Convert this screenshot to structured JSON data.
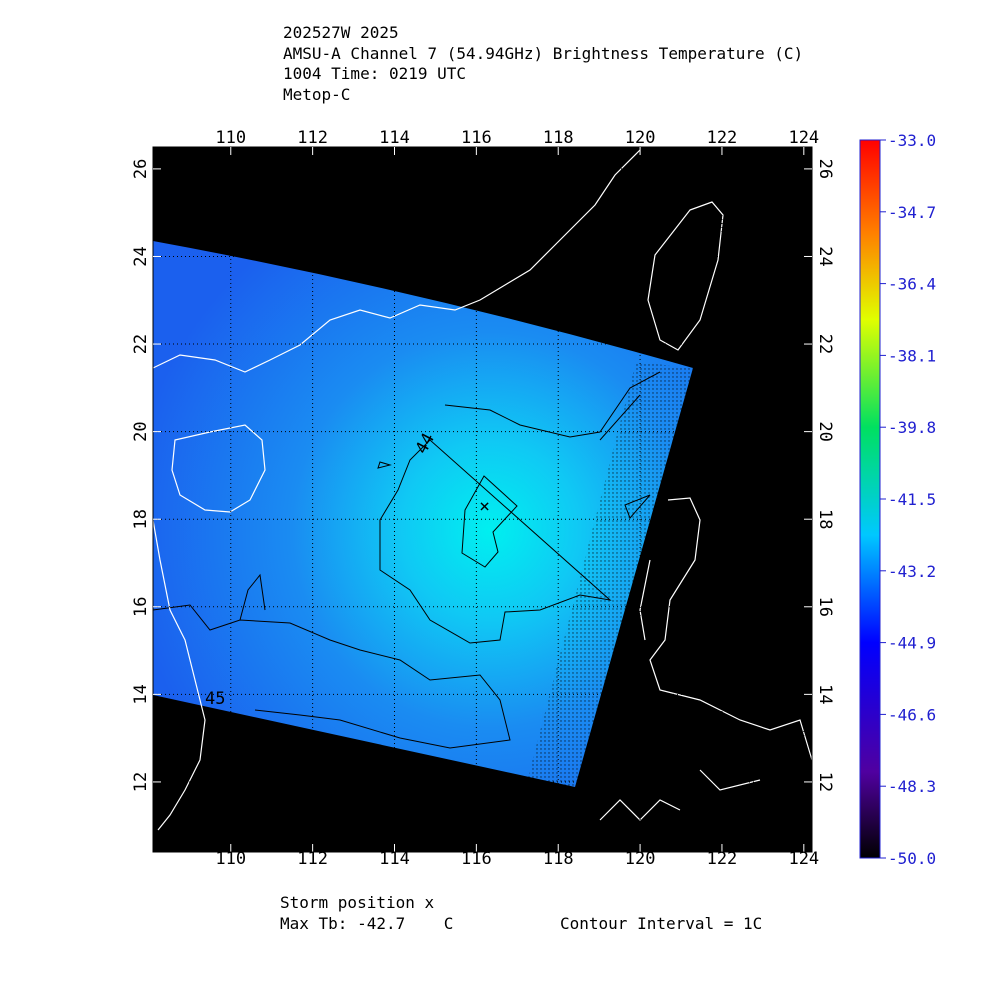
{
  "header": {
    "lines": [
      "202527W 2025",
      "AMSU-A Channel 7 (54.94GHz) Brightness Temperature (C)",
      "1004 Time: 0219 UTC",
      "Metop-C"
    ]
  },
  "chart_data": {
    "type": "map",
    "xlim": [
      108.1,
      124.2
    ],
    "ylim": [
      10.4,
      26.5
    ],
    "xticks": [
      110,
      112,
      114,
      116,
      118,
      120,
      122,
      124
    ],
    "yticks": [
      12,
      14,
      16,
      18,
      20,
      22,
      24,
      26
    ],
    "grid": true,
    "storm_position": {
      "lon": 116.2,
      "lat": 18.3
    },
    "contour_labels": [
      "44",
      "45"
    ],
    "colorbar": {
      "clim": [
        -50,
        -33
      ],
      "ticks": [
        {
          "value": -33,
          "label": "-33.0"
        },
        {
          "value": -34.7,
          "label": "-34.7"
        },
        {
          "value": -36.4,
          "label": "-36.4"
        },
        {
          "value": -38.1,
          "label": "-38.1"
        },
        {
          "value": -39.8,
          "label": "-39.8"
        },
        {
          "value": -41.5,
          "label": "-41.5"
        },
        {
          "value": -43.2,
          "label": "-43.2"
        },
        {
          "value": -44.9,
          "label": "-44.9"
        },
        {
          "value": -46.6,
          "label": "-46.6"
        },
        {
          "value": -48.3,
          "label": "-48.3"
        },
        {
          "value": -50,
          "label": "-50.0"
        }
      ]
    }
  },
  "footer": {
    "storm": "Storm position x",
    "max_tb": "Max Tb: -42.7    C",
    "contour": "Contour Interval = 1C"
  }
}
